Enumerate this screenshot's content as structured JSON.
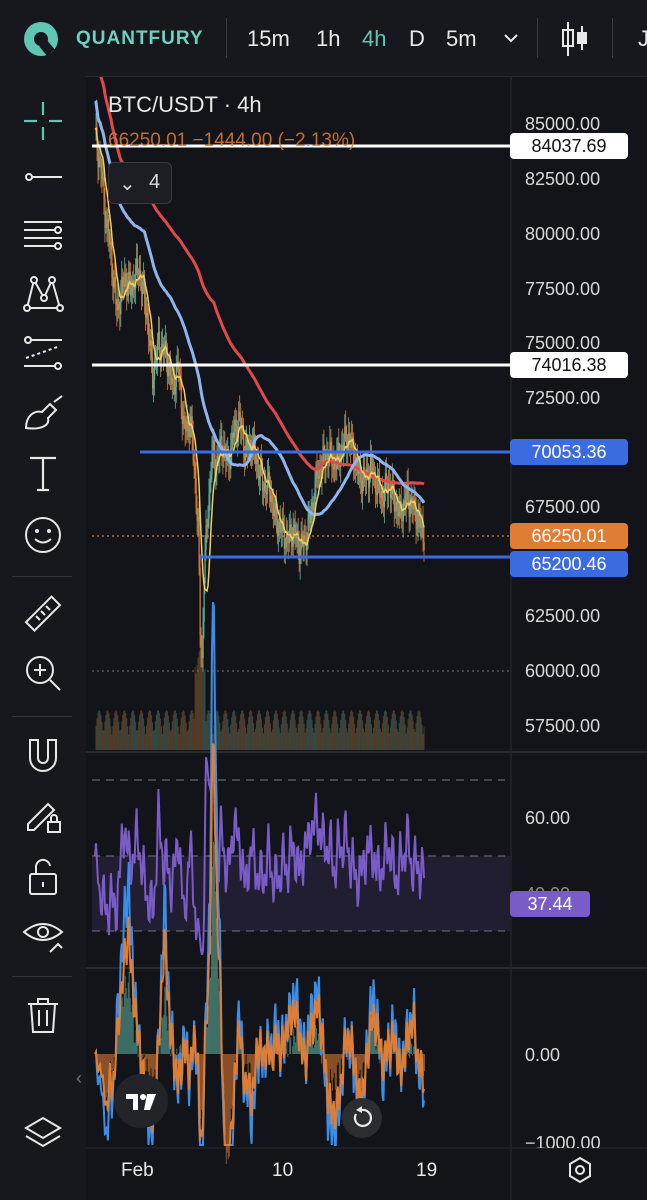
{
  "brand": "QUANTFURY",
  "timeframes": [
    "15m",
    "1h",
    "4h",
    "D",
    "5m"
  ],
  "active_timeframe": "4h",
  "symbol_header": "BTC/USDT · 4h",
  "price_row": "66250.01  −1444.00 (−2.13%)",
  "indicators_count": "4",
  "price_axis": [
    "85000.00",
    "82500.00",
    "80000.00",
    "77500.00",
    "75000.00",
    "72500.00",
    "67500.00",
    "62500.00",
    "60000.00",
    "57500.00"
  ],
  "tags": {
    "line1": "84037.69",
    "line2": "74016.38",
    "resistance": "70053.36",
    "current": "66250.01",
    "support": "65200.46"
  },
  "rsi_axis": [
    "60.00",
    "40.00"
  ],
  "rsi_value": "37.44",
  "macd_axis": [
    "0.00",
    "−1000.00"
  ],
  "x_labels": [
    "Feb",
    "10",
    "19"
  ],
  "colors": {
    "accent": "#5fc6b4",
    "up": "#5fb3a3",
    "down": "#e07d35",
    "ma_fast": "#f0d060",
    "ma_mid": "#8fb4f0",
    "ma_slow": "#e04a4a",
    "rsi": "#7a5cc8",
    "level_blue": "#3a6be0"
  },
  "icons": [
    "crosshair-icon",
    "trendline-icon",
    "fib-icon",
    "pattern-icon",
    "prediction-icon",
    "brush-icon",
    "text-icon",
    "emoji-icon",
    "ruler-icon",
    "zoom-in-icon",
    "magnet-icon",
    "lock-drawing-icon",
    "unlock-icon",
    "eye-icon",
    "trash-icon",
    "layers-icon"
  ]
}
